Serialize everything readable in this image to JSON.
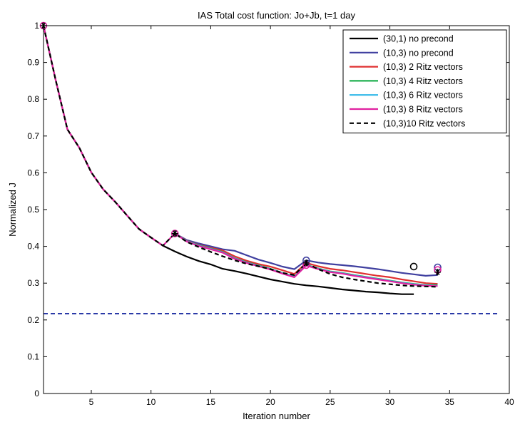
{
  "chart_data": {
    "type": "line",
    "title": "IAS Total cost function: Jo+Jb, t=1 day",
    "xlabel": "Iteration number",
    "ylabel": "Normalized J",
    "xlim": [
      1,
      40
    ],
    "ylim": [
      0,
      1
    ],
    "xticks": [
      5,
      10,
      15,
      20,
      25,
      30,
      35,
      40
    ],
    "yticks": [
      0,
      0.1,
      0.2,
      0.3,
      0.4,
      0.5,
      0.6,
      0.7,
      0.8,
      0.9,
      1
    ],
    "grid": false,
    "legend_position": "top-right",
    "reference_line": {
      "y": 0.217,
      "color": "#2b3aa8",
      "style": "dashed"
    },
    "series": [
      {
        "name": "(30,1) no precond",
        "color": "#000000",
        "style": "solid",
        "x": [
          1,
          2,
          3,
          4,
          5,
          6,
          7,
          8,
          9,
          10,
          11,
          12,
          13,
          14,
          15,
          16,
          17,
          18,
          19,
          20,
          21,
          22,
          23,
          24,
          25,
          26,
          27,
          28,
          29,
          30,
          31,
          32
        ],
        "y": [
          1.0,
          0.855,
          0.718,
          0.668,
          0.601,
          0.555,
          0.521,
          0.484,
          0.447,
          0.424,
          0.402,
          0.386,
          0.372,
          0.36,
          0.351,
          0.339,
          0.333,
          0.326,
          0.318,
          0.31,
          0.304,
          0.298,
          0.294,
          0.291,
          0.287,
          0.283,
          0.28,
          0.277,
          0.275,
          0.272,
          0.27,
          0.27
        ]
      },
      {
        "name": "(10,3) no precond",
        "color": "#3f3f9f",
        "style": "solid",
        "x": [
          12,
          13,
          14,
          15,
          16,
          17,
          18,
          19,
          20,
          21,
          22,
          23,
          24,
          25,
          26,
          27,
          28,
          29,
          30,
          31,
          32,
          33,
          34
        ],
        "y": [
          0.435,
          0.417,
          0.408,
          0.4,
          0.392,
          0.388,
          0.376,
          0.364,
          0.355,
          0.345,
          0.338,
          0.362,
          0.356,
          0.352,
          0.349,
          0.346,
          0.342,
          0.338,
          0.333,
          0.328,
          0.324,
          0.32,
          0.322
        ]
      },
      {
        "name": "(10,3) 2 Ritz vectors",
        "color": "#e03030",
        "style": "solid",
        "x": [
          12,
          13,
          14,
          15,
          16,
          17,
          18,
          19,
          20,
          21,
          22,
          23,
          24,
          25,
          26,
          27,
          28,
          29,
          30,
          31,
          32,
          33,
          34
        ],
        "y": [
          0.435,
          0.415,
          0.404,
          0.396,
          0.389,
          0.373,
          0.361,
          0.352,
          0.345,
          0.335,
          0.325,
          0.355,
          0.346,
          0.339,
          0.335,
          0.33,
          0.325,
          0.32,
          0.316,
          0.31,
          0.305,
          0.3,
          0.298
        ]
      },
      {
        "name": "(10,3) 4 Ritz vectors",
        "color": "#20b050",
        "style": "solid",
        "x": [
          12,
          13,
          14,
          15,
          16,
          17,
          18,
          19,
          20,
          21,
          22,
          23,
          24,
          25,
          26,
          27,
          28,
          29,
          30,
          31,
          32,
          33,
          34
        ],
        "y": [
          0.435,
          0.414,
          0.403,
          0.394,
          0.385,
          0.368,
          0.357,
          0.348,
          0.339,
          0.328,
          0.318,
          0.35,
          0.34,
          0.332,
          0.328,
          0.322,
          0.317,
          0.312,
          0.307,
          0.302,
          0.298,
          0.295,
          0.295
        ]
      },
      {
        "name": "(10,3) 6 Ritz vectors",
        "color": "#30b8e8",
        "style": "solid",
        "x": [
          12,
          13,
          14,
          15,
          16,
          17,
          18,
          19,
          20,
          21,
          22,
          23,
          24,
          25,
          26,
          27,
          28,
          29,
          30,
          31,
          32,
          33,
          34
        ],
        "y": [
          0.435,
          0.414,
          0.402,
          0.393,
          0.384,
          0.367,
          0.356,
          0.347,
          0.338,
          0.327,
          0.317,
          0.349,
          0.339,
          0.331,
          0.327,
          0.321,
          0.316,
          0.311,
          0.306,
          0.301,
          0.297,
          0.294,
          0.293
        ]
      },
      {
        "name": "(10,3) 8 Ritz vectors",
        "color": "#e020a0",
        "style": "solid",
        "x": [
          1,
          2,
          3,
          4,
          5,
          6,
          7,
          8,
          9,
          10,
          11,
          12,
          13,
          14,
          15,
          16,
          17,
          18,
          19,
          20,
          21,
          22,
          23,
          24,
          25,
          26,
          27,
          28,
          29,
          30,
          31,
          32,
          33,
          34
        ],
        "y": [
          1.0,
          0.855,
          0.718,
          0.668,
          0.601,
          0.555,
          0.521,
          0.484,
          0.447,
          0.424,
          0.402,
          0.435,
          0.413,
          0.401,
          0.392,
          0.383,
          0.366,
          0.355,
          0.346,
          0.337,
          0.326,
          0.316,
          0.348,
          0.338,
          0.33,
          0.326,
          0.32,
          0.315,
          0.31,
          0.305,
          0.3,
          0.296,
          0.293,
          0.292
        ]
      },
      {
        "name": "(10,3)10 Ritz vectors",
        "color": "#000000",
        "style": "dashed",
        "x": [
          1,
          2,
          3,
          4,
          5,
          6,
          7,
          8,
          9,
          10,
          11,
          12,
          13,
          14,
          15,
          16,
          17,
          18,
          19,
          20,
          21,
          22,
          23,
          24,
          25,
          26,
          27,
          28,
          29,
          30,
          31,
          32,
          33,
          34
        ],
        "y": [
          1.0,
          0.855,
          0.718,
          0.668,
          0.601,
          0.555,
          0.521,
          0.484,
          0.447,
          0.424,
          0.402,
          0.435,
          0.412,
          0.398,
          0.385,
          0.373,
          0.362,
          0.353,
          0.346,
          0.338,
          0.328,
          0.322,
          0.355,
          0.338,
          0.325,
          0.316,
          0.31,
          0.305,
          0.3,
          0.297,
          0.294,
          0.292,
          0.291,
          0.29
        ]
      }
    ],
    "markers": [
      {
        "symbol": "circle",
        "x": 1,
        "y": 1.0,
        "color": "#e020a0"
      },
      {
        "symbol": "star",
        "x": 1,
        "y": 1.0,
        "color": "#000000"
      },
      {
        "symbol": "circle",
        "x": 12,
        "y": 0.435,
        "color": "#e020a0"
      },
      {
        "symbol": "star",
        "x": 12,
        "y": 0.435,
        "color": "#000000"
      },
      {
        "symbol": "circle",
        "x": 23,
        "y": 0.362,
        "color": "#3f3f9f"
      },
      {
        "symbol": "circle",
        "x": 23,
        "y": 0.349,
        "color": "#e020a0"
      },
      {
        "symbol": "star",
        "x": 23,
        "y": 0.355,
        "color": "#000000"
      },
      {
        "symbol": "circle",
        "x": 32,
        "y": 0.345,
        "color": "#000000"
      },
      {
        "symbol": "circle",
        "x": 34,
        "y": 0.343,
        "color": "#3f3f9f"
      },
      {
        "symbol": "circle",
        "x": 34,
        "y": 0.336,
        "color": "#e020a0"
      },
      {
        "symbol": "star",
        "x": 34,
        "y": 0.33,
        "color": "#000000"
      }
    ]
  }
}
